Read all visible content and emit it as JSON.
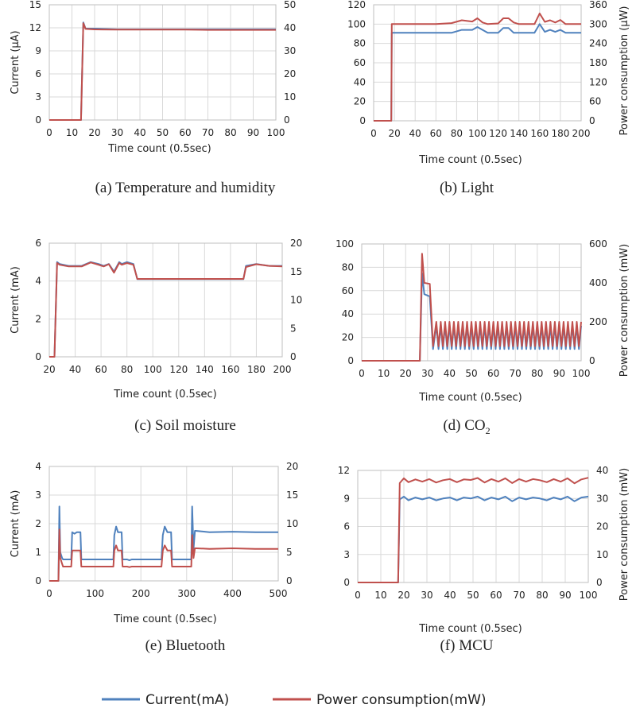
{
  "colors": {
    "current": "#4f81bd",
    "power": "#c0504d",
    "grid": "#d9d9d9",
    "frame": "#bfbfbf"
  },
  "legend": {
    "current": "Current(mA)",
    "power": "Power consumption(mW)"
  },
  "chart_data": [
    {
      "id": "a",
      "type": "line",
      "caption": "(a) Temperature and humidity",
      "xlabel": "Time count (0.5sec)",
      "ylabel": "Current (μA)",
      "y2label": "",
      "xlim": [
        0,
        100
      ],
      "xticks": [
        "0",
        "10",
        "20",
        "30",
        "40",
        "50",
        "60",
        "70",
        "80",
        "90",
        "100"
      ],
      "ylim": [
        0,
        15
      ],
      "yticks": [
        "0",
        "3",
        "6",
        "9",
        "12",
        "15"
      ],
      "y2lim": [
        0,
        50
      ],
      "y2ticks": [
        "0",
        "10",
        "20",
        "30",
        "40",
        "50"
      ],
      "grid": true,
      "series": [
        {
          "axis": "left",
          "x": [
            0,
            14,
            15,
            16,
            20,
            30,
            40,
            50,
            60,
            70,
            80,
            90,
            100
          ],
          "y": [
            0,
            0,
            12.7,
            11.9,
            11.9,
            11.8,
            11.8,
            11.8,
            11.8,
            11.8,
            11.8,
            11.8,
            11.8
          ]
        },
        {
          "axis": "right",
          "x": [
            0,
            14,
            15,
            16,
            20,
            30,
            40,
            50,
            60,
            70,
            80,
            90,
            100
          ],
          "y": [
            0,
            0,
            42,
            39.5,
            39.3,
            39.2,
            39.2,
            39.2,
            39.2,
            39.1,
            39.1,
            39.1,
            39.1
          ]
        }
      ]
    },
    {
      "id": "b",
      "type": "line",
      "caption": "(b) Light",
      "xlabel": "Time count (0.5sec)",
      "ylabel": "",
      "y2label": "Power consumption (μW)",
      "xlim": [
        0,
        200
      ],
      "xticks": [
        "0",
        "20",
        "40",
        "60",
        "80",
        "100",
        "120",
        "140",
        "160",
        "180",
        "200"
      ],
      "ylim": [
        0,
        120
      ],
      "yticks": [
        "0",
        "20",
        "40",
        "60",
        "80",
        "100",
        "120"
      ],
      "y2lim": [
        0,
        360
      ],
      "y2ticks": [
        "0",
        "60",
        "120",
        "180",
        "240",
        "300",
        "360"
      ],
      "grid": true,
      "series": [
        {
          "axis": "left",
          "x": [
            0,
            17,
            17.5,
            60,
            75,
            85,
            95,
            100,
            105,
            110,
            120,
            125,
            130,
            135,
            140,
            155,
            160,
            165,
            170,
            175,
            180,
            185,
            200
          ],
          "y": [
            0,
            0,
            91,
            91,
            91,
            94,
            94,
            97,
            94,
            91,
            91,
            96,
            96,
            91,
            91,
            91,
            100,
            92,
            94,
            92,
            94,
            91,
            91
          ]
        },
        {
          "axis": "right",
          "x": [
            0,
            17,
            17.5,
            60,
            75,
            85,
            95,
            100,
            105,
            110,
            120,
            125,
            130,
            135,
            140,
            155,
            160,
            165,
            170,
            175,
            180,
            185,
            200
          ],
          "y": [
            0,
            0,
            300,
            300,
            303,
            312,
            308,
            318,
            305,
            300,
            302,
            318,
            318,
            305,
            300,
            300,
            333,
            307,
            312,
            305,
            313,
            300,
            300
          ]
        }
      ]
    },
    {
      "id": "c",
      "type": "line",
      "caption": "(c) Soil moisture",
      "xlabel": "Time count (0.5sec)",
      "ylabel": "Current (mA)",
      "y2label": "",
      "xlim": [
        20,
        200
      ],
      "xticks": [
        "20",
        "40",
        "60",
        "80",
        "100",
        "120",
        "140",
        "160",
        "180",
        "200"
      ],
      "ylim": [
        0,
        6
      ],
      "yticks": [
        "0",
        "2",
        "4",
        "6"
      ],
      "y2lim": [
        0,
        20
      ],
      "y2ticks": [
        "0",
        "5",
        "10",
        "15",
        "20"
      ],
      "grid": true,
      "series": [
        {
          "axis": "left",
          "x": [
            20,
            24,
            26,
            28,
            35,
            45,
            52,
            58,
            62,
            66,
            70,
            74,
            76,
            80,
            85,
            88,
            90,
            100,
            120,
            140,
            160,
            170,
            172,
            180,
            190,
            200
          ],
          "y": [
            0,
            0,
            5.0,
            4.9,
            4.8,
            4.8,
            5.0,
            4.9,
            4.8,
            4.9,
            4.5,
            5.0,
            4.9,
            5.0,
            4.9,
            4.1,
            4.1,
            4.1,
            4.1,
            4.1,
            4.1,
            4.1,
            4.8,
            4.9,
            4.8,
            4.8
          ]
        },
        {
          "axis": "right",
          "x": [
            20,
            24,
            26,
            28,
            35,
            45,
            52,
            58,
            62,
            66,
            70,
            74,
            76,
            80,
            85,
            88,
            90,
            100,
            120,
            140,
            160,
            170,
            172,
            180,
            190,
            200
          ],
          "y": [
            0,
            0,
            16.5,
            16.2,
            15.9,
            15.9,
            16.6,
            16.2,
            15.9,
            16.3,
            14.8,
            16.5,
            16.2,
            16.5,
            16.2,
            13.7,
            13.7,
            13.7,
            13.7,
            13.7,
            13.7,
            13.7,
            15.8,
            16.3,
            16.0,
            15.9
          ]
        }
      ]
    },
    {
      "id": "d",
      "type": "line",
      "caption": "(d) CO2",
      "xlabel": "Time count (0.5sec)",
      "ylabel": "",
      "y2label": "Power consumption (mW)",
      "xlim": [
        0,
        100
      ],
      "xticks": [
        "0",
        "10",
        "20",
        "30",
        "40",
        "50",
        "60",
        "70",
        "80",
        "90",
        "100"
      ],
      "ylim": [
        0,
        100
      ],
      "yticks": [
        "0",
        "20",
        "40",
        "60",
        "80",
        "100"
      ],
      "y2lim": [
        0,
        600
      ],
      "y2ticks": [
        "0",
        "200",
        "400",
        "600"
      ],
      "grid": true,
      "series": [
        {
          "axis": "left",
          "x": [
            0,
            26.5,
            27.5,
            28.5,
            31,
            32.5,
            34,
            35,
            36,
            37,
            38,
            39,
            40,
            41,
            42,
            43,
            44,
            45,
            46,
            47,
            48,
            49,
            50,
            51,
            52,
            53,
            54,
            55,
            56,
            57,
            58,
            59,
            60,
            61,
            62,
            63,
            64,
            65,
            66,
            67,
            68,
            69,
            70,
            71,
            72,
            73,
            74,
            75,
            76,
            77,
            78,
            79,
            80,
            81,
            82,
            83,
            84,
            85,
            86,
            87,
            88,
            89,
            90,
            91,
            92,
            93,
            94,
            95,
            96,
            97,
            98,
            99,
            100
          ],
          "y": [
            0,
            0,
            75,
            57,
            55,
            10,
            30,
            10,
            30,
            10,
            30,
            10,
            30,
            10,
            30,
            10,
            30,
            10,
            30,
            10,
            30,
            10,
            30,
            10,
            30,
            10,
            30,
            10,
            30,
            10,
            30,
            10,
            30,
            10,
            30,
            10,
            30,
            10,
            30,
            10,
            30,
            10,
            30,
            10,
            30,
            10,
            30,
            10,
            30,
            10,
            30,
            10,
            30,
            10,
            30,
            10,
            30,
            10,
            30,
            10,
            30,
            10,
            30,
            10,
            30,
            10,
            30,
            10,
            30,
            10,
            30,
            10,
            30
          ]
        },
        {
          "axis": "right",
          "x": [
            0,
            26.5,
            27.5,
            28.5,
            31,
            32.5,
            34,
            35,
            36,
            37,
            38,
            39,
            40,
            41,
            42,
            43,
            44,
            45,
            46,
            47,
            48,
            49,
            50,
            51,
            52,
            53,
            54,
            55,
            56,
            57,
            58,
            59,
            60,
            61,
            62,
            63,
            64,
            65,
            66,
            67,
            68,
            69,
            70,
            71,
            72,
            73,
            74,
            75,
            76,
            77,
            78,
            79,
            80,
            81,
            82,
            83,
            84,
            85,
            86,
            87,
            88,
            89,
            90,
            91,
            92,
            93,
            94,
            95,
            96,
            97,
            98,
            99,
            100
          ],
          "y": [
            0,
            0,
            550,
            400,
            395,
            75,
            200,
            75,
            200,
            75,
            200,
            75,
            200,
            75,
            200,
            75,
            200,
            75,
            200,
            75,
            200,
            75,
            200,
            75,
            200,
            75,
            200,
            75,
            200,
            75,
            200,
            75,
            200,
            75,
            200,
            75,
            200,
            75,
            200,
            75,
            200,
            75,
            200,
            75,
            200,
            75,
            200,
            75,
            200,
            75,
            200,
            75,
            200,
            75,
            200,
            75,
            200,
            75,
            200,
            75,
            200,
            75,
            200,
            75,
            200,
            75,
            200,
            75,
            200,
            75,
            200,
            75,
            200
          ]
        }
      ]
    },
    {
      "id": "e",
      "type": "line",
      "caption": "(e) Bluetooth",
      "xlabel": "Time count (0.5sec)",
      "ylabel": "Current (mA)",
      "y2label": "",
      "xlim": [
        0,
        500
      ],
      "xticks": [
        "0",
        "100",
        "200",
        "300",
        "400",
        "500"
      ],
      "ylim": [
        0,
        4
      ],
      "yticks": [
        "0",
        "1",
        "2",
        "3",
        "4"
      ],
      "y2lim": [
        0,
        20
      ],
      "y2ticks": [
        "0",
        "5",
        "10",
        "15",
        "20"
      ],
      "grid": true,
      "series": [
        {
          "axis": "left",
          "x": [
            0,
            20,
            22,
            24,
            28,
            30,
            48,
            50,
            55,
            60,
            68,
            70,
            140,
            142,
            146,
            150,
            158,
            160,
            170,
            175,
            180,
            245,
            248,
            252,
            258,
            266,
            268,
            310,
            312,
            315,
            318,
            320,
            350,
            400,
            450,
            500
          ],
          "y": [
            0,
            0,
            2.6,
            1.0,
            0.8,
            0.75,
            0.75,
            1.7,
            1.65,
            1.7,
            1.7,
            0.75,
            0.75,
            1.6,
            1.9,
            1.7,
            1.7,
            0.75,
            0.75,
            0.72,
            0.75,
            0.75,
            1.6,
            1.9,
            1.7,
            1.7,
            0.75,
            0.75,
            2.6,
            1.1,
            1.75,
            1.75,
            1.7,
            1.72,
            1.7,
            1.7
          ]
        },
        {
          "axis": "right",
          "x": [
            0,
            20,
            22,
            24,
            28,
            30,
            48,
            50,
            55,
            60,
            68,
            70,
            140,
            142,
            146,
            150,
            158,
            160,
            170,
            175,
            180,
            245,
            248,
            252,
            258,
            266,
            268,
            310,
            312,
            315,
            318,
            320,
            350,
            400,
            450,
            500
          ],
          "y": [
            0,
            0,
            9.0,
            4.0,
            3.0,
            2.5,
            2.5,
            5.3,
            5.3,
            5.3,
            5.3,
            2.5,
            2.5,
            5.3,
            6.2,
            5.3,
            5.3,
            2.5,
            2.5,
            2.4,
            2.5,
            2.5,
            5.3,
            6.2,
            5.3,
            5.3,
            2.5,
            2.5,
            8.0,
            4.0,
            5.7,
            5.7,
            5.6,
            5.7,
            5.6,
            5.6
          ]
        }
      ]
    },
    {
      "id": "f",
      "type": "line",
      "caption": "(f) MCU",
      "xlabel": "Time count (0.5sec)",
      "ylabel": "",
      "y2label": "Power consumption (mW)",
      "xlim": [
        0,
        100
      ],
      "xticks": [
        "0",
        "10",
        "20",
        "30",
        "40",
        "50",
        "60",
        "70",
        "80",
        "90",
        "100"
      ],
      "ylim": [
        0,
        12
      ],
      "yticks": [
        "0",
        "3",
        "6",
        "9",
        "12"
      ],
      "y2lim": [
        0,
        40
      ],
      "y2ticks": [
        "0",
        "10",
        "20",
        "30",
        "40"
      ],
      "grid": true,
      "series": [
        {
          "axis": "left",
          "x": [
            0,
            17.5,
            18.2,
            20,
            22,
            25,
            28,
            31,
            34,
            37,
            40,
            43,
            46,
            49,
            52,
            55,
            58,
            61,
            64,
            67,
            70,
            73,
            76,
            79,
            82,
            85,
            88,
            91,
            94,
            97,
            100
          ],
          "y": [
            0,
            0,
            8.9,
            9.2,
            8.8,
            9.1,
            8.9,
            9.1,
            8.8,
            9.0,
            9.1,
            8.8,
            9.1,
            9.0,
            9.2,
            8.8,
            9.1,
            8.9,
            9.2,
            8.7,
            9.1,
            8.9,
            9.1,
            9.0,
            8.8,
            9.1,
            8.9,
            9.2,
            8.7,
            9.1,
            9.2
          ]
        },
        {
          "axis": "right",
          "x": [
            0,
            17.5,
            18.2,
            20,
            22,
            25,
            28,
            31,
            34,
            37,
            40,
            43,
            46,
            49,
            52,
            55,
            58,
            61,
            64,
            67,
            70,
            73,
            76,
            79,
            82,
            85,
            88,
            91,
            94,
            97,
            100
          ],
          "y": [
            0,
            0,
            35.5,
            37.2,
            35.8,
            36.8,
            36,
            36.9,
            35.7,
            36.5,
            36.9,
            35.8,
            36.8,
            36.6,
            37.3,
            35.7,
            36.9,
            36,
            37.2,
            35.5,
            36.9,
            36,
            36.9,
            36.5,
            35.8,
            36.9,
            36,
            37.2,
            35.4,
            36.8,
            37.4
          ]
        }
      ]
    }
  ]
}
